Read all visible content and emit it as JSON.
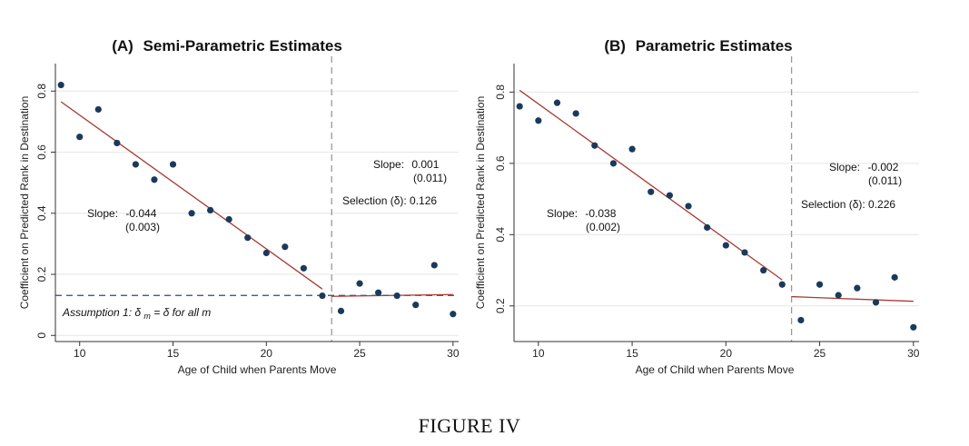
{
  "figure": {
    "caption": "FIGURE IV"
  },
  "chart_data": [
    {
      "type": "scatter",
      "panel_label": "(A)",
      "title": "Semi-Parametric Estimates",
      "xlabel": "Age of Child when Parents Move",
      "ylabel": "Coefficient on Predicted Rank in Destination",
      "xlim": [
        8.7,
        30.3
      ],
      "ylim": [
        -0.02,
        0.89
      ],
      "xticks": [
        10,
        15,
        20,
        25,
        30
      ],
      "yticks": [
        0,
        0.2,
        0.4,
        0.6,
        0.8
      ],
      "ytick_labels": [
        "0",
        "0.2",
        "0.4",
        "0.6",
        "0.8"
      ],
      "grid": true,
      "color_points": "#1a3a5c",
      "color_line": "#a83a32",
      "series": [
        {
          "x": [
            9,
            10,
            11,
            12,
            13,
            14,
            15,
            16,
            17,
            18,
            19,
            20,
            21,
            22,
            23,
            24,
            25,
            26,
            27,
            28,
            29,
            30
          ],
          "values": [
            0.82,
            0.65,
            0.74,
            0.63,
            0.56,
            0.51,
            0.56,
            0.4,
            0.41,
            0.38,
            0.32,
            0.27,
            0.29,
            0.22,
            0.13,
            0.08,
            0.17,
            0.14,
            0.13,
            0.1,
            0.23,
            0.07
          ]
        }
      ],
      "fit_lines": [
        {
          "x": [
            9,
            23
          ],
          "y": [
            0.765,
            0.152
          ]
        },
        {
          "x": [
            23.5,
            30
          ],
          "y": [
            0.128,
            0.134
          ]
        }
      ],
      "vline_x": 23.5,
      "hline_y": 0.131,
      "annotations": {
        "slope_left_label": "Slope:",
        "slope_left_value": "-0.044",
        "slope_left_se": "(0.003)",
        "slope_right_label": "Slope:",
        "slope_right_value": "0.001",
        "slope_right_se": "(0.011)",
        "selection": "Selection (δ): 0.126",
        "assumption_prefix": "Assumption 1: ",
        "assumption_delta": "δ",
        "assumption_sub": "m",
        "assumption_eq": " = ",
        "assumption_delta2": "δ",
        "assumption_suffix": " for all m"
      }
    },
    {
      "type": "scatter",
      "panel_label": "(B)",
      "title": "Parametric Estimates",
      "xlabel": "Age of Child when Parents Move",
      "ylabel": "Coefficient on Predicted Rank in Destination",
      "xlim": [
        8.7,
        30.3
      ],
      "ylim": [
        0.1,
        0.88
      ],
      "xticks": [
        10,
        15,
        20,
        25,
        30
      ],
      "yticks": [
        0.2,
        0.4,
        0.6,
        0.8
      ],
      "ytick_labels": [
        "0.2",
        "0.4",
        "0.6",
        "0.8"
      ],
      "grid": true,
      "color_points": "#1a3a5c",
      "color_line": "#a83a32",
      "series": [
        {
          "x": [
            9,
            10,
            11,
            12,
            13,
            14,
            15,
            16,
            17,
            18,
            19,
            20,
            21,
            22,
            23,
            24,
            25,
            26,
            27,
            28,
            29,
            30
          ],
          "values": [
            0.76,
            0.72,
            0.77,
            0.74,
            0.65,
            0.6,
            0.64,
            0.52,
            0.51,
            0.48,
            0.42,
            0.37,
            0.35,
            0.3,
            0.26,
            0.16,
            0.26,
            0.23,
            0.25,
            0.21,
            0.28,
            0.14
          ]
        }
      ],
      "fit_lines": [
        {
          "x": [
            9,
            23
          ],
          "y": [
            0.805,
            0.273
          ]
        },
        {
          "x": [
            23.5,
            30
          ],
          "y": [
            0.226,
            0.213
          ]
        }
      ],
      "vline_x": 23.5,
      "annotations": {
        "slope_left_label": "Slope:",
        "slope_left_value": "-0.038",
        "slope_left_se": "(0.002)",
        "slope_right_label": "Slope:",
        "slope_right_value": "-0.002",
        "slope_right_se": "(0.011)",
        "selection": "Selection (δ): 0.226"
      }
    }
  ]
}
